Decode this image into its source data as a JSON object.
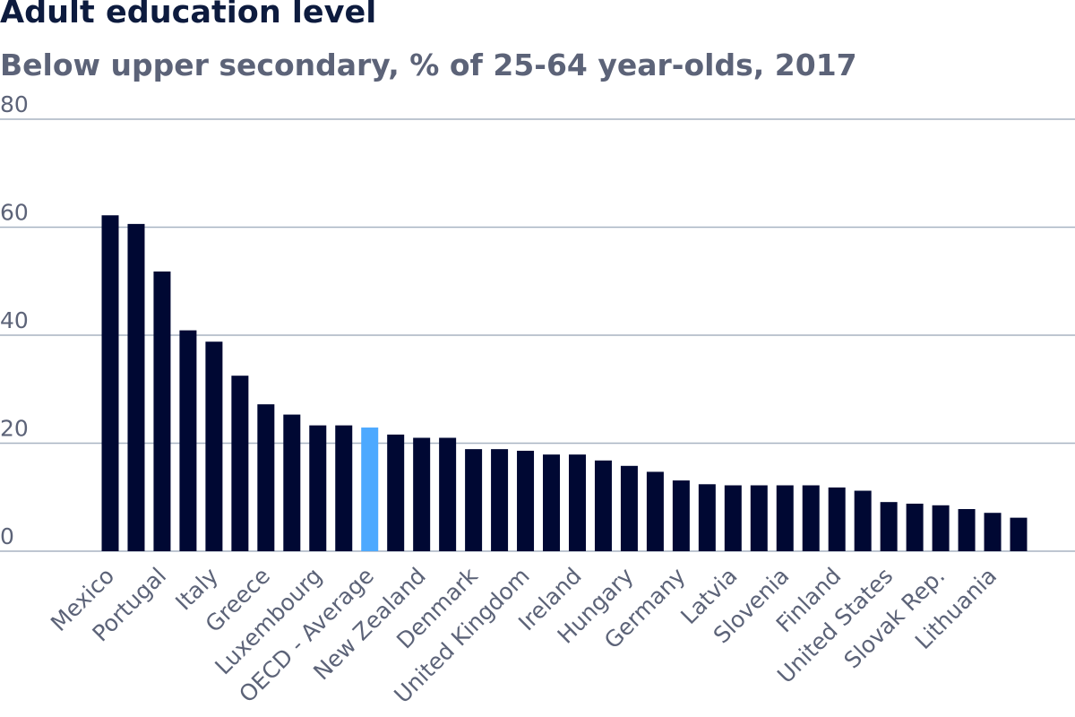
{
  "chart_data": {
    "type": "bar",
    "title": "Adult education level",
    "subtitle": "Below upper secondary, % of 25-64 year-olds, 2017",
    "ylim": [
      0,
      80
    ],
    "yticks": [
      0,
      20,
      40,
      60,
      80
    ],
    "grid": true,
    "colors": {
      "default": "#000833",
      "highlight": "#4da9ff"
    },
    "highlight": "OECD - Average",
    "categories": [
      "Mexico",
      "",
      "Portugal",
      "",
      "Italy",
      "",
      "Greece",
      "",
      "Luxembourg",
      "",
      "OECD - Average",
      "",
      "New Zealand",
      "",
      "Denmark",
      "",
      "United Kingdom",
      "",
      "Ireland",
      "",
      "Hungary",
      "",
      "Germany",
      "",
      "Latvia",
      "",
      "Slovenia",
      "",
      "Finland",
      "",
      "United States",
      "",
      "Slovak Rep.",
      "",
      "Lithuania",
      ""
    ],
    "values": [
      62.2,
      60.6,
      51.8,
      40.9,
      38.8,
      32.5,
      27.2,
      25.3,
      23.3,
      23.3,
      22.9,
      21.6,
      21.0,
      21.0,
      18.9,
      18.9,
      18.6,
      17.9,
      17.9,
      16.8,
      15.8,
      14.7,
      13.1,
      12.4,
      12.2,
      12.2,
      12.2,
      12.2,
      11.8,
      11.2,
      9.1,
      8.8,
      8.5,
      7.8,
      7.1,
      6.2
    ]
  }
}
